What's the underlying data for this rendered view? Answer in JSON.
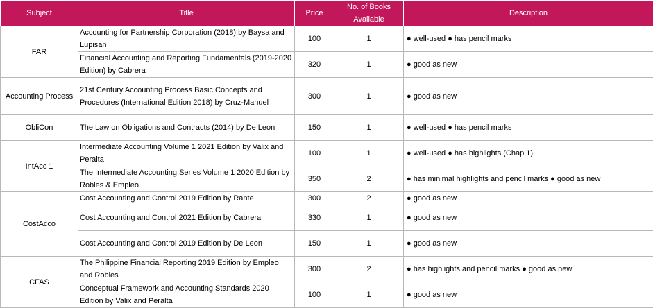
{
  "columns": {
    "subject": "Subject",
    "title": "Title",
    "price": "Price",
    "books_available": "No. of Books Available",
    "description": "Description"
  },
  "groups": [
    {
      "subject": "FAR",
      "rows": [
        {
          "title": "Accounting for Partnership Corporation (2018) by Baysa and Lupisan",
          "price": "100",
          "qty": "1",
          "description": "● well-used ● has pencil marks"
        },
        {
          "title": "Financial Accounting and Reporting Fundamentals (2019-2020 Edition) by Cabrera",
          "price": "320",
          "qty": "1",
          "description": "● good as new"
        }
      ]
    },
    {
      "subject": "Accounting Process",
      "rows": [
        {
          "title": "21st Century Accounting Process Basic Concepts and Procedures (International Edition 2018) by Cruz-Manuel",
          "price": "300",
          "qty": "1",
          "description": "● good as new"
        }
      ]
    },
    {
      "subject": "ObliCon",
      "rows": [
        {
          "title": "The Law on Obligations and Contracts (2014) by De Leon",
          "price": "150",
          "qty": "1",
          "description": "● well-used ● has pencil marks"
        }
      ]
    },
    {
      "subject": "IntAcc 1",
      "rows": [
        {
          "title": "Intermediate Accounting Volume 1 2021 Edition by Valix and Peralta",
          "price": "100",
          "qty": "1",
          "description": "● well-used ● has highlights (Chap 1)"
        },
        {
          "title": "The Intermediate Accounting Series Volume 1 2020 Edition by Robles & Empleo",
          "price": "350",
          "qty": "2",
          "description": "● has minimal highlights and pencil marks ● good as new"
        }
      ]
    },
    {
      "subject": "CostAcco",
      "rows": [
        {
          "title": "Cost Accounting and Control 2019 Edition by Rante",
          "price": "300",
          "qty": "2",
          "description": "● good as new"
        },
        {
          "title": "Cost Accounting and Control 2021 Edition by Cabrera",
          "price": "330",
          "qty": "1",
          "description": "● good as new"
        },
        {
          "title": "Cost Accounting and Control 2019 Edition by De Leon",
          "price": "150",
          "qty": "1",
          "description": "● good as new"
        }
      ]
    },
    {
      "subject": "CFAS",
      "rows": [
        {
          "title": "The Philippine Financial Reporting 2019 Edition by Empleo and Robles",
          "price": "300",
          "qty": "2",
          "description": "● has highlights and pencil marks ● good as new"
        },
        {
          "title": "Conceptual Framework and Accounting Standards 2020 Edition by Valix and Peralta",
          "price": "100",
          "qty": "1",
          "description": "● good as new"
        }
      ]
    }
  ]
}
